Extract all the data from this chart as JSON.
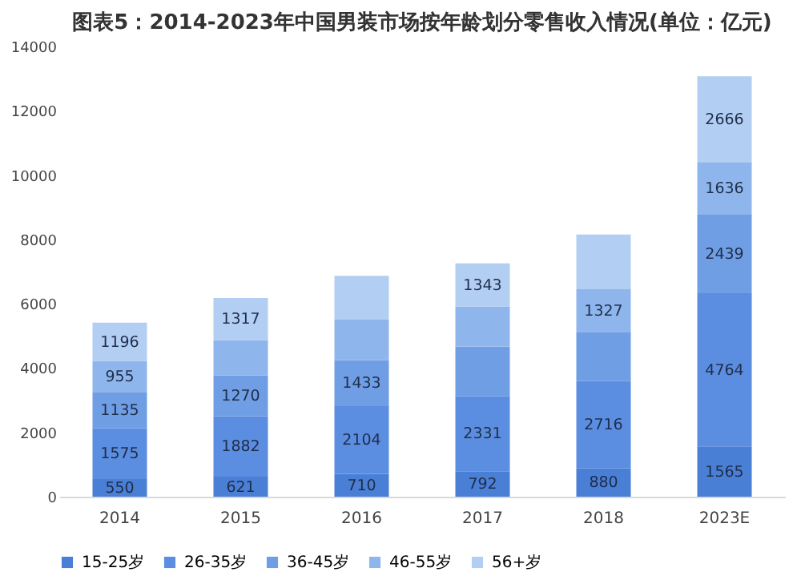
{
  "chart_data": {
    "type": "bar",
    "stacked": true,
    "title": "图表5：2014-2023年中国男装市场按年龄划分零售收入情况(单位：亿元)",
    "categories": [
      "2014",
      "2015",
      "2016",
      "2017",
      "2018",
      "2023E"
    ],
    "series": [
      {
        "name": "15-25岁",
        "color": "#4a7fd6",
        "values": [
          550,
          621,
          710,
          792,
          880,
          1565
        ],
        "value_labels": [
          "550",
          "621",
          "710",
          "792",
          "880",
          "1565"
        ]
      },
      {
        "name": "26-35岁",
        "color": "#5b8ee0",
        "values": [
          1575,
          1882,
          2104,
          2331,
          2716,
          4764
        ],
        "value_labels": [
          "1575",
          "1882",
          "2104",
          "2331",
          "2716",
          "4764"
        ]
      },
      {
        "name": "36-45岁",
        "color": "#6f9ee4",
        "values": [
          1135,
          1270,
          1433,
          1540,
          1530,
          2439
        ],
        "value_labels": [
          "1135",
          "1270",
          "1433",
          null,
          null,
          "2439"
        ]
      },
      {
        "name": "46-55岁",
        "color": "#8fb6ec",
        "values": [
          955,
          1090,
          1260,
          1250,
          1327,
          1636
        ],
        "value_labels": [
          "955",
          null,
          null,
          null,
          "1327",
          "1636"
        ]
      },
      {
        "name": "56+岁",
        "color": "#b3cef3",
        "values": [
          1196,
          1317,
          1360,
          1343,
          1700,
          2666
        ],
        "value_labels": [
          "1196",
          "1317",
          null,
          "1343",
          null,
          "2666"
        ]
      }
    ],
    "ylim": [
      0,
      14000
    ],
    "yticks": [
      0,
      2000,
      4000,
      6000,
      8000,
      10000,
      12000,
      14000
    ],
    "grid": false,
    "legend": "bottom"
  }
}
